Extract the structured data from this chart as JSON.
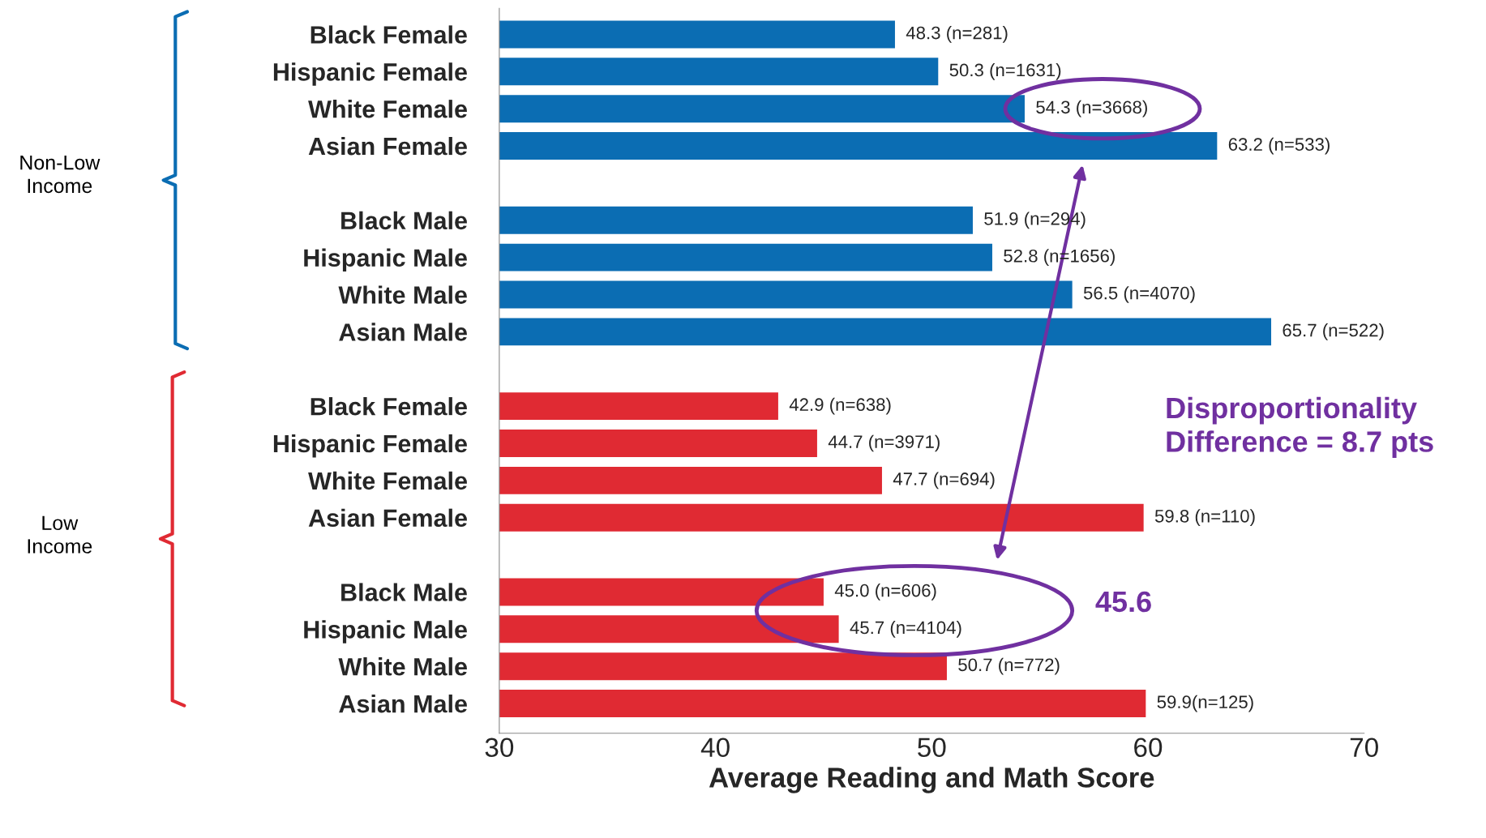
{
  "chart_data": {
    "type": "bar",
    "orientation": "horizontal",
    "categories": [
      "Black Female",
      "Hispanic Female",
      "White Female",
      "Asian Female",
      null,
      "Black Male",
      "Hispanic Male",
      "White Male",
      "Asian Male",
      null,
      "Black Female",
      "Hispanic Female",
      "White Female",
      "Asian Female",
      null,
      "Black Male",
      "Hispanic Male",
      "White Male",
      "Asian Male"
    ],
    "values": [
      48.3,
      50.3,
      54.3,
      63.2,
      null,
      51.9,
      52.8,
      56.5,
      65.7,
      null,
      42.9,
      44.7,
      47.7,
      59.8,
      null,
      45.0,
      45.7,
      50.7,
      59.9
    ],
    "colors": [
      "#0b6db3",
      "#0b6db3",
      "#0b6db3",
      "#0b6db3",
      null,
      "#0b6db3",
      "#0b6db3",
      "#0b6db3",
      "#0b6db3",
      null,
      "#e02a33",
      "#e02a33",
      "#e02a33",
      "#e02a33",
      null,
      "#e02a33",
      "#e02a33",
      "#e02a33",
      "#e02a33"
    ],
    "value_labels": [
      "48.3 (n=281)",
      "50.3 (n=1631)",
      "54.3 (n=3668)",
      "63.2 (n=533)",
      null,
      "51.9 (n=294)",
      "52.8 (n=1656)",
      "56.5 (n=4070)",
      "65.7 (n=522)",
      null,
      "42.9 (n=638)",
      "44.7 (n=3971)",
      "47.7 (n=694)",
      "59.8 (n=110)",
      null,
      "45.0 (n=606)",
      "45.7 (n=4104)",
      "50.7 (n=772)",
      "59.9(n=125)"
    ],
    "xlim": [
      30,
      70
    ],
    "xticks": [
      30,
      40,
      50,
      60,
      70
    ],
    "xlabel": "Average Reading and Math Score",
    "grid": false,
    "legend": false,
    "annotations": [
      "Non-Low\nIncome",
      "Low\nIncome",
      "Disproportionality\nDifference = 8.7 pts",
      "45.6"
    ]
  }
}
